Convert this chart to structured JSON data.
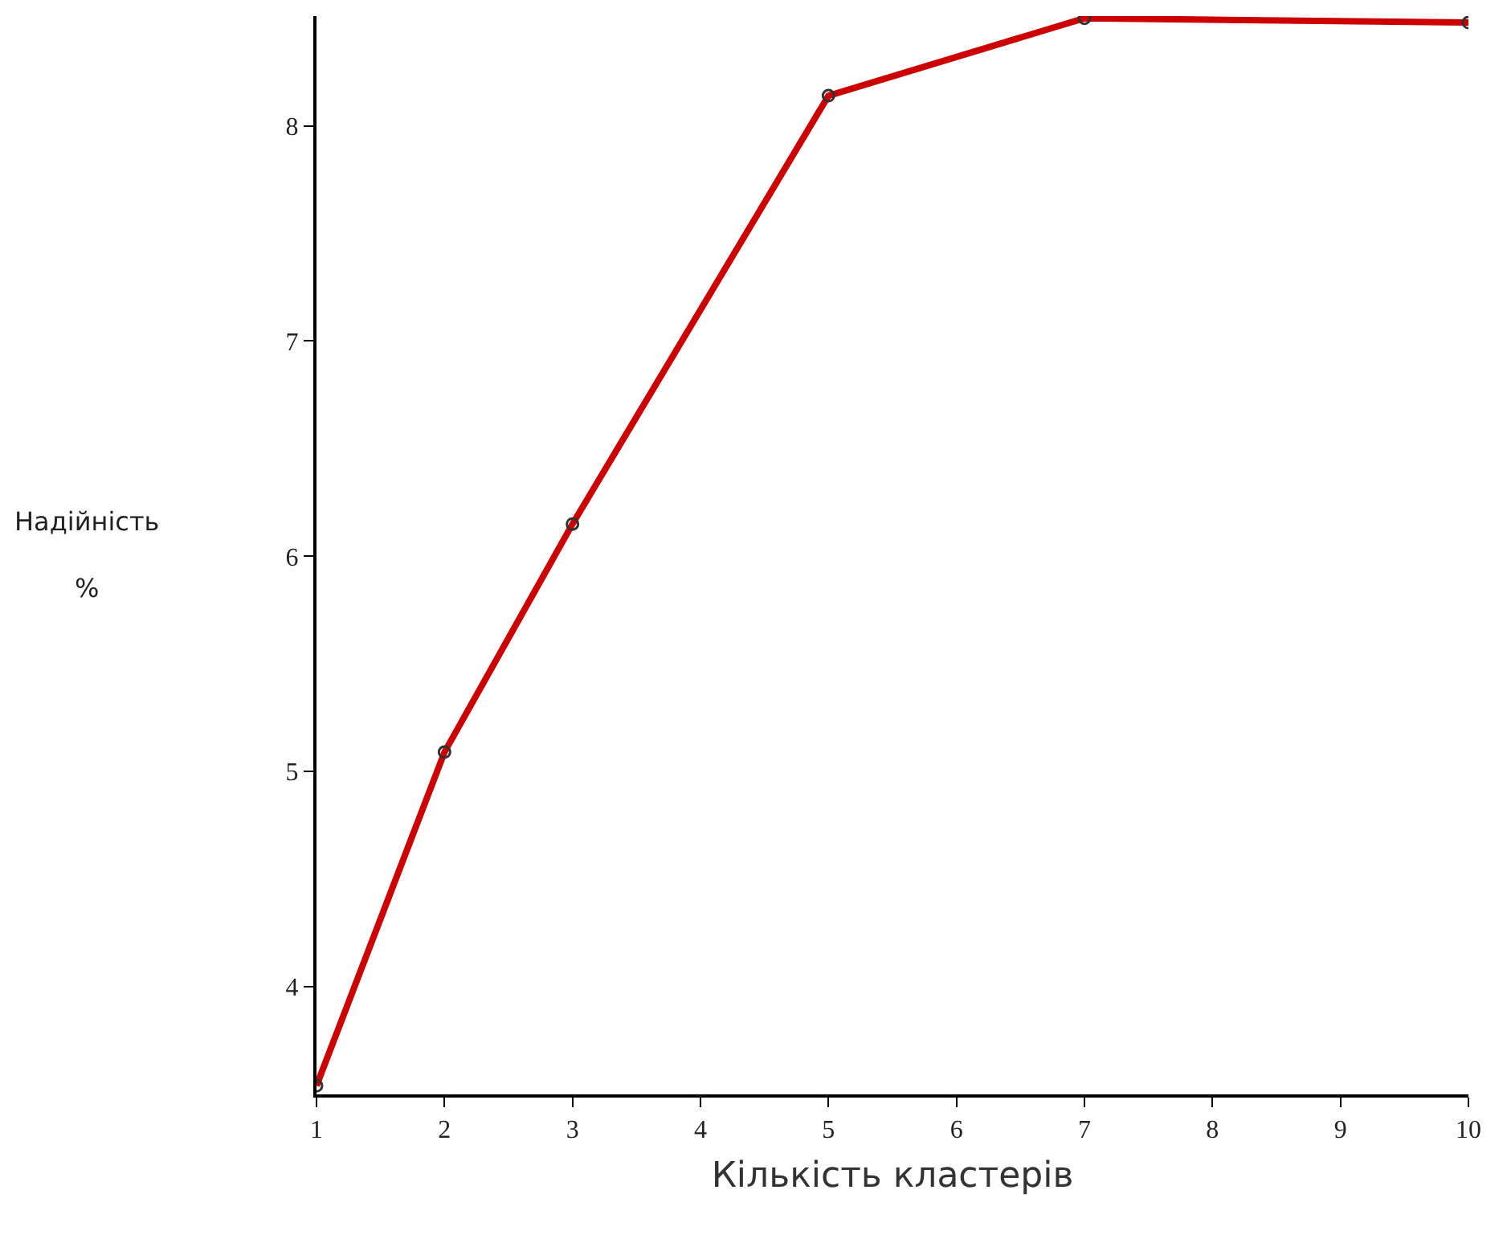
{
  "chart_data": {
    "type": "line",
    "xlabel": "Кількість кластерів",
    "ylabel": "Надійність\n%",
    "x": [
      1,
      2,
      3,
      5,
      7,
      10
    ],
    "series": [
      {
        "color": "#cc0000",
        "values": [
          3.54,
          5.09,
          6.15,
          8.14,
          8.5,
          8.48
        ]
      }
    ],
    "xlim": [
      1,
      10
    ],
    "xticks": [
      1,
      2,
      3,
      4,
      5,
      6,
      7,
      8,
      9,
      10
    ],
    "ylim": [
      3.5,
      8.51
    ],
    "yticks": [
      4,
      5,
      6,
      7,
      8
    ],
    "grid": false,
    "marker": "circle",
    "line_style": "solid"
  }
}
